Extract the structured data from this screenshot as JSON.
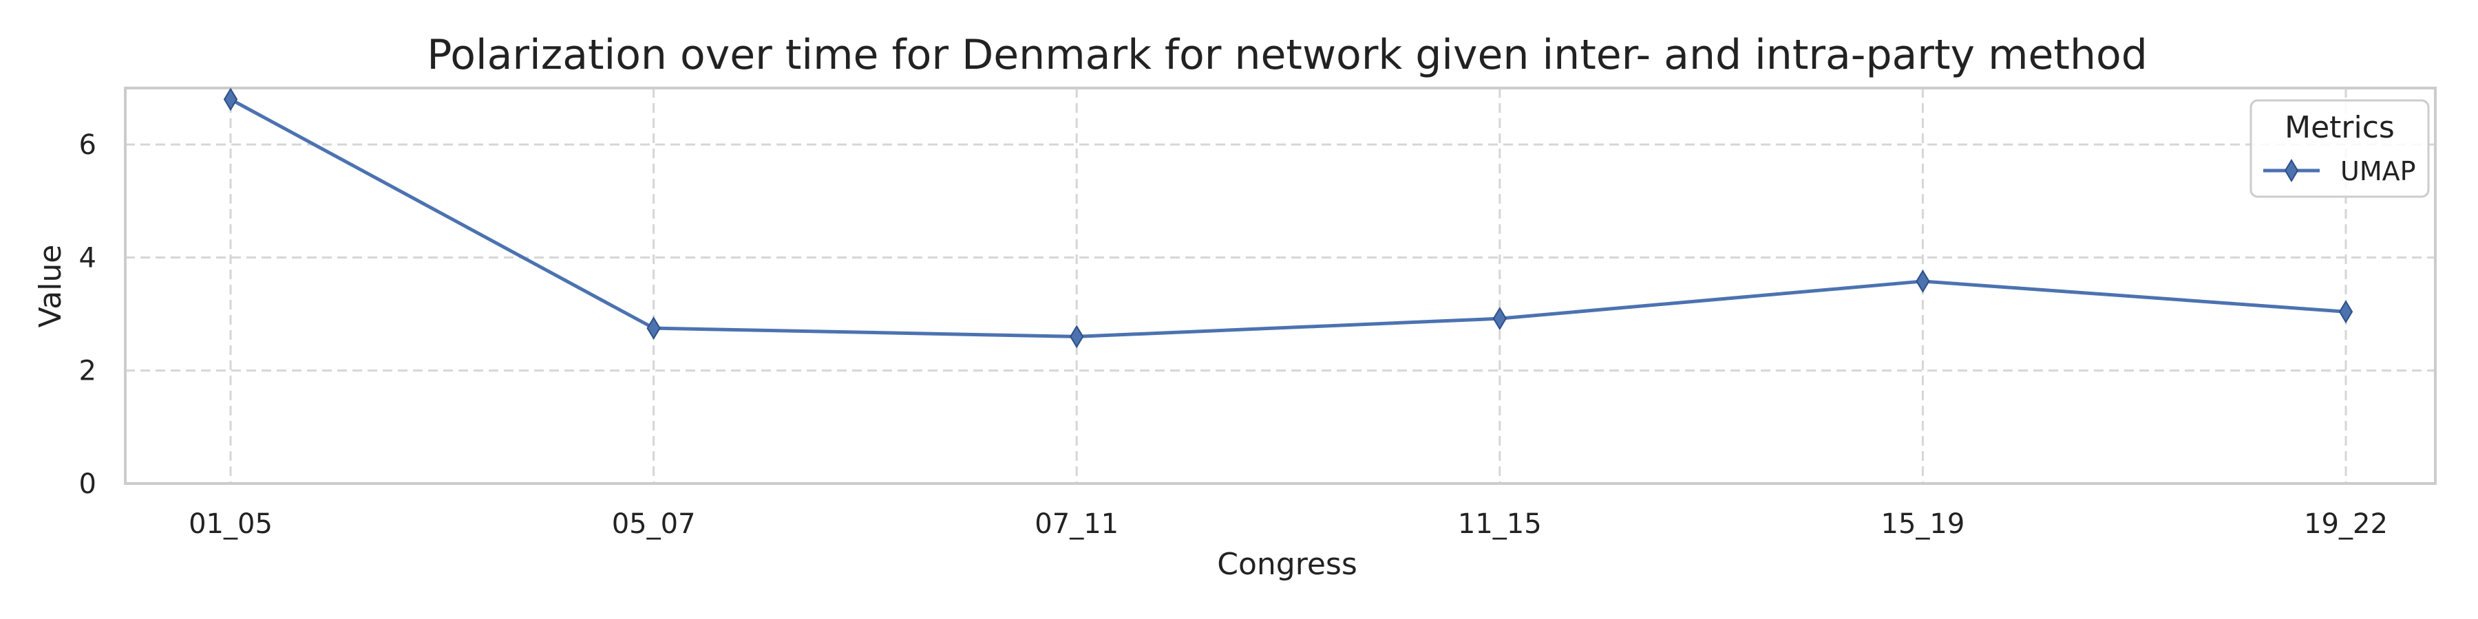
{
  "chart_data": {
    "type": "line",
    "title": "Polarization over time for Denmark for network given inter- and intra-party method",
    "xlabel": "Congress",
    "ylabel": "Value",
    "categories": [
      "01_05",
      "05_07",
      "07_11",
      "11_15",
      "15_19",
      "19_22"
    ],
    "series": [
      {
        "name": "UMAP",
        "values": [
          6.8,
          2.75,
          2.6,
          2.92,
          3.58,
          3.04
        ],
        "color": "#4c72b0",
        "marker": "diamond"
      }
    ],
    "ylim": [
      0,
      7.0
    ],
    "yticks": [
      0,
      2,
      4,
      6
    ],
    "grid": true,
    "legend": {
      "title": "Metrics",
      "position": "top-right"
    }
  }
}
